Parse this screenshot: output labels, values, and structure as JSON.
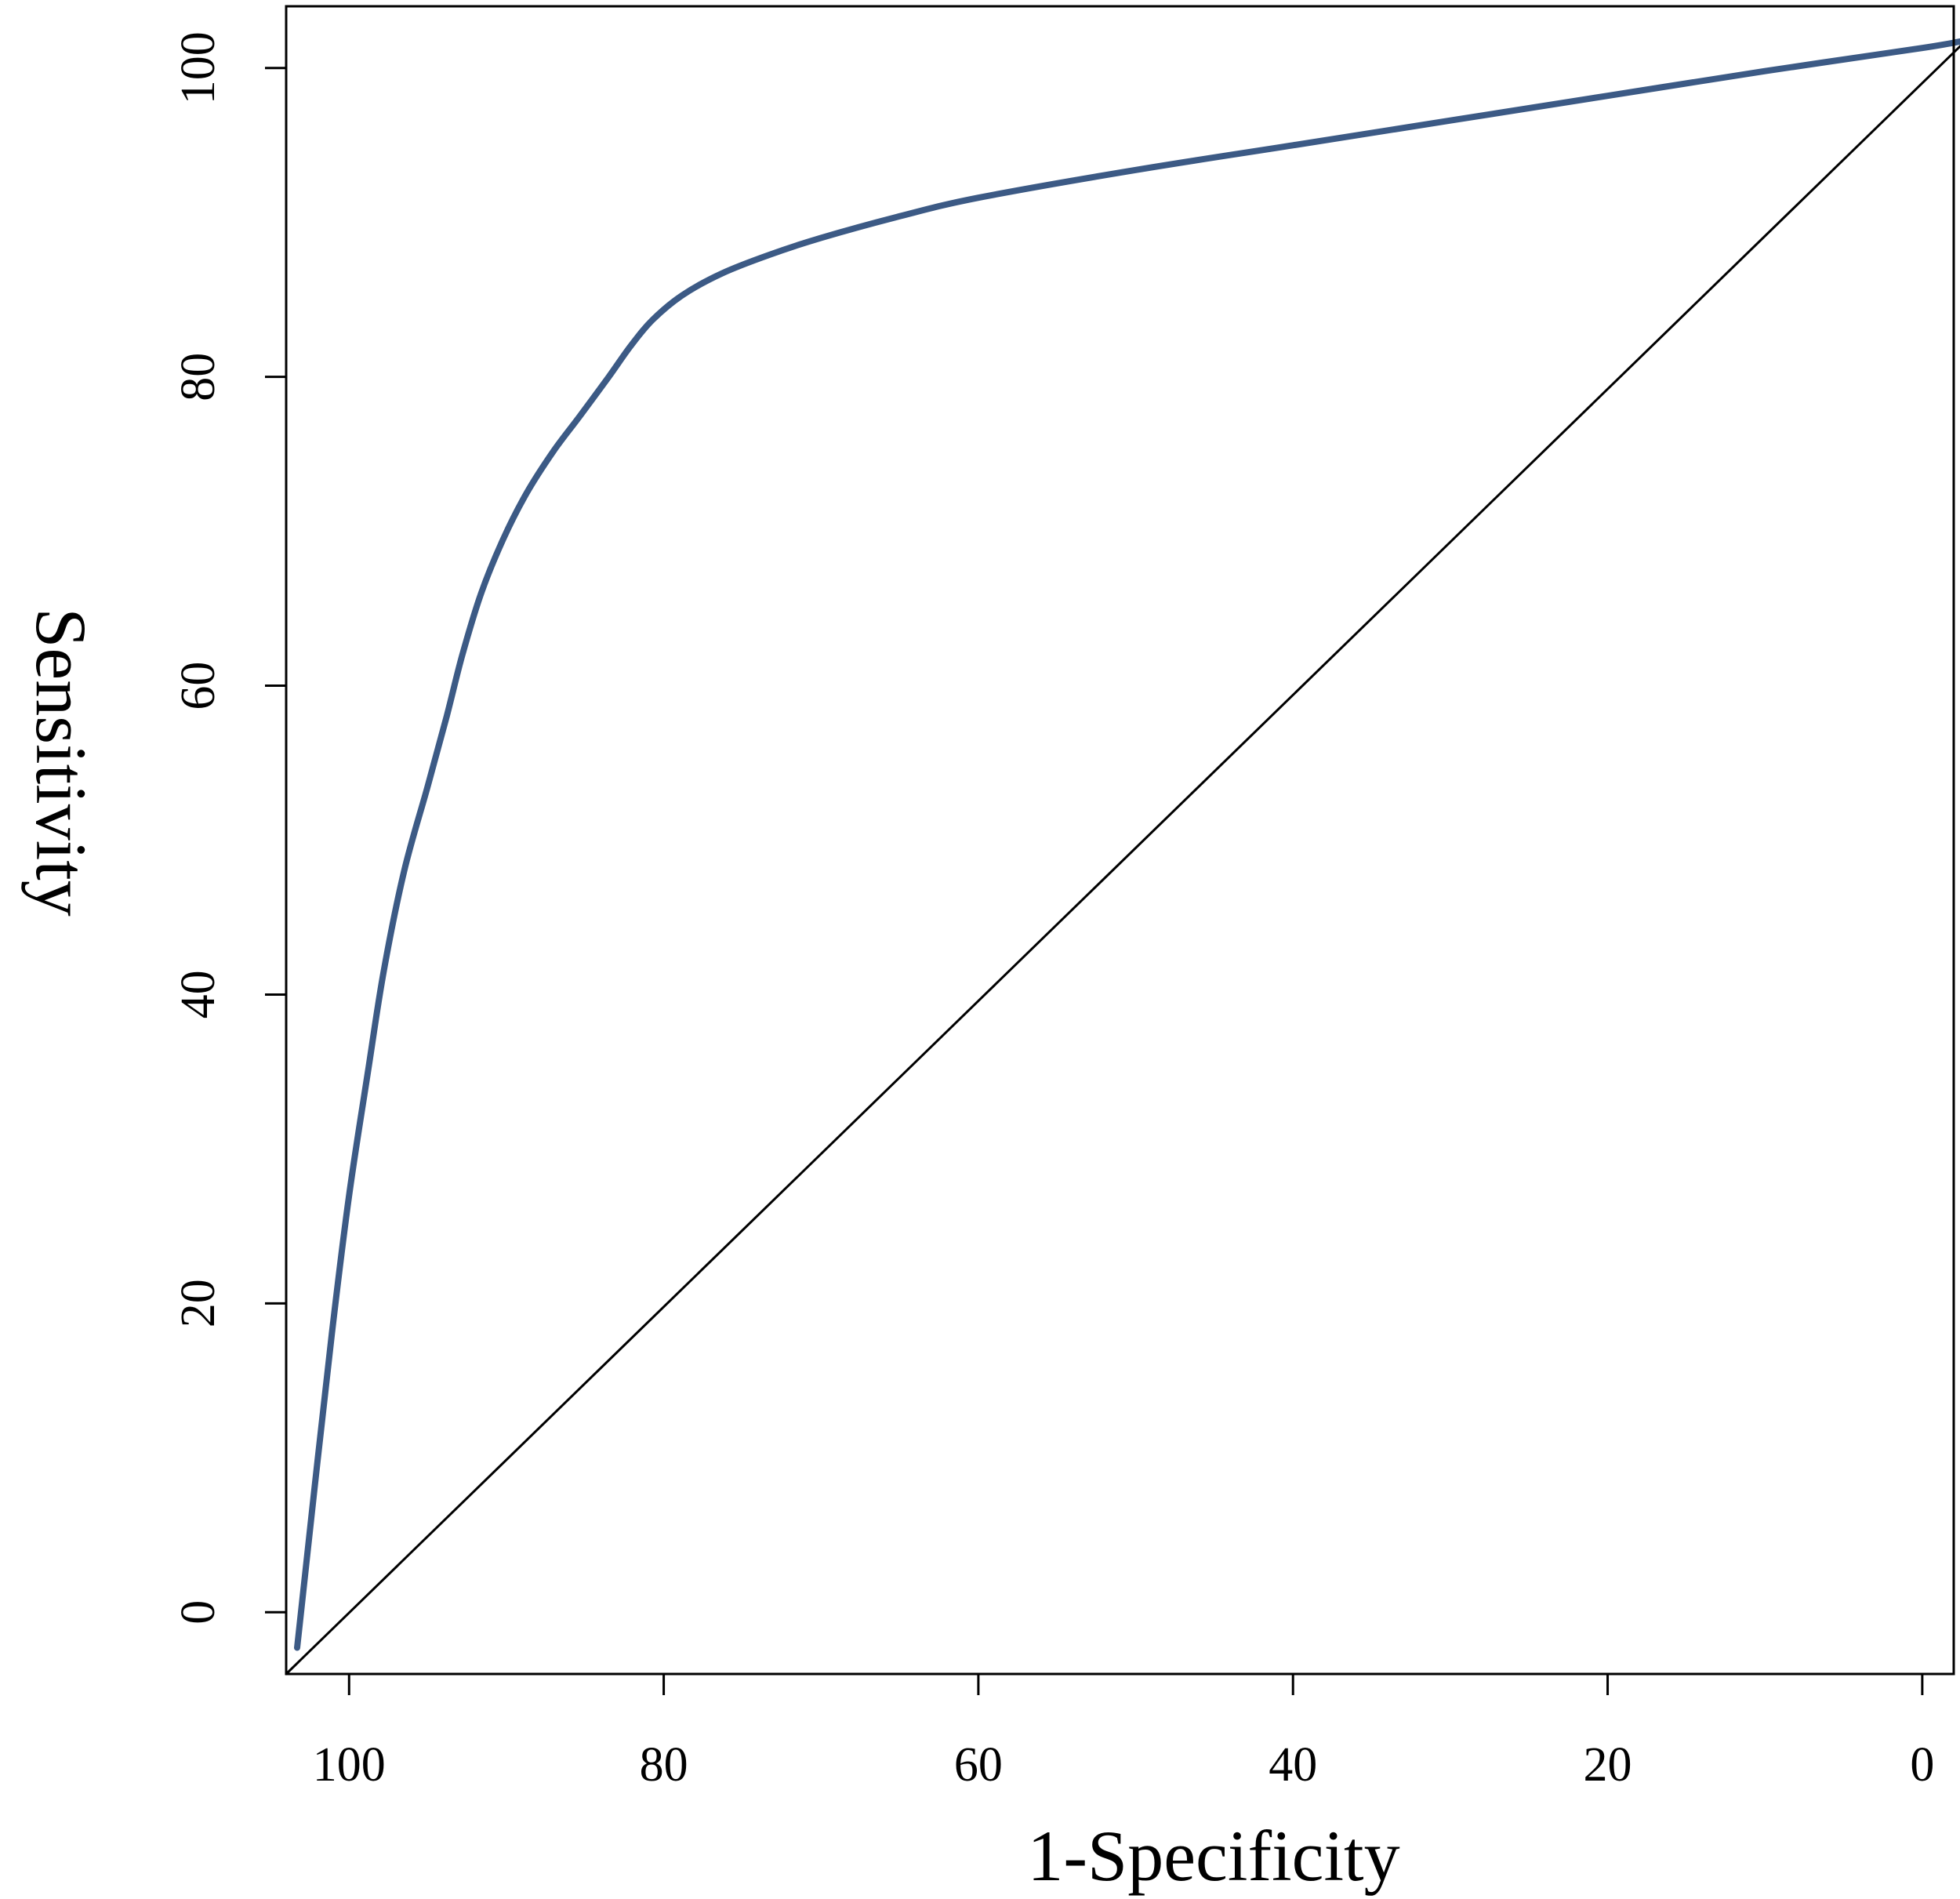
{
  "chart_data": {
    "type": "line",
    "title": "",
    "xlabel": "1-Specificity",
    "ylabel": "Sensitivity",
    "x_reversed": true,
    "xlim": [
      104,
      -2
    ],
    "ylim": [
      -4,
      104
    ],
    "x_ticks": [
      100,
      80,
      60,
      40,
      20,
      0
    ],
    "y_ticks": [
      0,
      20,
      40,
      60,
      80,
      100
    ],
    "grid": false,
    "legend": "none",
    "series": [
      {
        "color": "#3c5a85",
        "points": [
          [
            103.3,
            -2.3
          ],
          [
            102.2,
            8
          ],
          [
            101.1,
            18
          ],
          [
            100,
            27
          ],
          [
            98.8,
            35
          ],
          [
            97.8,
            41.5
          ],
          [
            96.5,
            48
          ],
          [
            95,
            53.5
          ],
          [
            93.8,
            58
          ],
          [
            92.8,
            62
          ],
          [
            91.6,
            66
          ],
          [
            90.2,
            69.5
          ],
          [
            88.7,
            72.5
          ],
          [
            87,
            75.2
          ],
          [
            85.3,
            77.5
          ],
          [
            83.5,
            80
          ],
          [
            82.1,
            82
          ],
          [
            80.7,
            83.7
          ],
          [
            78.8,
            85.3
          ],
          [
            76.3,
            86.7
          ],
          [
            73.3,
            87.9
          ],
          [
            70,
            89
          ],
          [
            65,
            90.4
          ],
          [
            60,
            91.6
          ],
          [
            50,
            93.4
          ],
          [
            40,
            95
          ],
          [
            30,
            96.6
          ],
          [
            20,
            98.2
          ],
          [
            10,
            99.8
          ],
          [
            0,
            101.3
          ],
          [
            -2.8,
            101.8
          ]
        ]
      },
      {
        "color": "#000000",
        "points": [
          [
            104,
            -4
          ],
          [
            -3,
            102
          ]
        ]
      }
    ]
  }
}
